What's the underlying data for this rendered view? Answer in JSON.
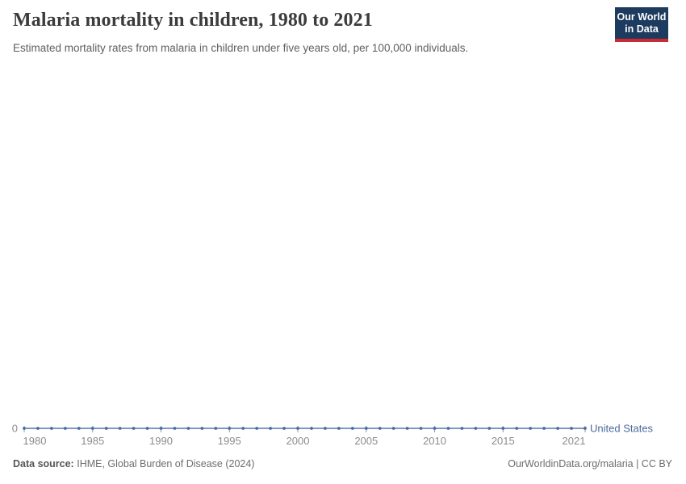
{
  "header": {
    "title": "Malaria mortality in children, 1980 to 2021",
    "subtitle": "Estimated mortality rates from malaria in children under five years old, per 100,000 individuals.",
    "logo": {
      "line1": "Our World",
      "line2": "in Data"
    }
  },
  "footer": {
    "datasource_label": "Data source:",
    "datasource_value": "IHME, Global Burden of Disease (2024)",
    "link_text": "OurWorldinData.org/malaria | CC BY"
  },
  "chart_data": {
    "type": "line",
    "title": "Malaria mortality in children, 1980 to 2021",
    "xlabel": "",
    "ylabel": "Estimated mortality rate from malaria, children under five, per 100,000",
    "grid": false,
    "legend_position": "inline-right-of-line",
    "x": [
      1980,
      1981,
      1982,
      1983,
      1984,
      1985,
      1986,
      1987,
      1988,
      1989,
      1990,
      1991,
      1992,
      1993,
      1994,
      1995,
      1996,
      1997,
      1998,
      1999,
      2000,
      2001,
      2002,
      2003,
      2004,
      2005,
      2006,
      2007,
      2008,
      2009,
      2010,
      2011,
      2012,
      2013,
      2014,
      2015,
      2016,
      2017,
      2018,
      2019,
      2020,
      2021
    ],
    "series": [
      {
        "name": "United States",
        "color": "#4C6A9C",
        "values": [
          0,
          0,
          0,
          0,
          0,
          0,
          0,
          0,
          0,
          0,
          0,
          0,
          0,
          0,
          0,
          0,
          0,
          0,
          0,
          0,
          0,
          0,
          0,
          0,
          0,
          0,
          0,
          0,
          0,
          0,
          0,
          0,
          0,
          0,
          0,
          0,
          0,
          0,
          0,
          0,
          0,
          0
        ]
      }
    ],
    "x_ticks": [
      1980,
      1985,
      1990,
      1995,
      2000,
      2005,
      2010,
      2015,
      2021
    ],
    "y_axis_labels": [
      "0"
    ],
    "ylim": [
      0,
      1
    ],
    "line_color_light": "#7E97C4",
    "axis_label_color": "#8c8c8c",
    "tick_mark_color": "#8a97ad"
  }
}
